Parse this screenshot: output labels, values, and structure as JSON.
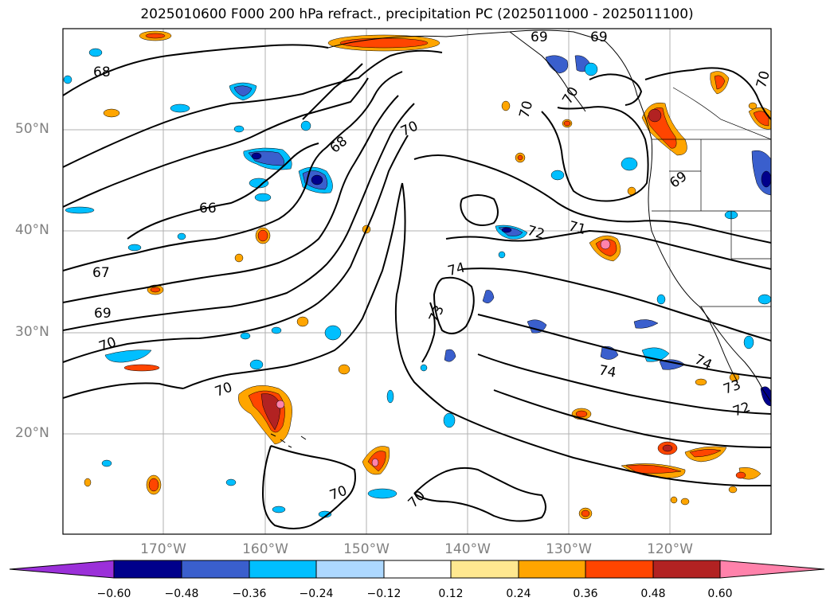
{
  "title": "2025010600 F000 200 hPa refract., precipitation PC (2025011000 - 2025011100)",
  "latitude_labels": [
    "50°N",
    "40°N",
    "30°N",
    "20°N"
  ],
  "longitude_labels": [
    "170°W",
    "160°W",
    "150°W",
    "140°W",
    "130°W",
    "120°W"
  ],
  "colorbar": {
    "tick_labels": [
      "−0.60",
      "−0.48",
      "−0.36",
      "−0.24",
      "−0.12",
      "0.12",
      "0.24",
      "0.36",
      "0.48",
      "0.60"
    ],
    "colors": [
      "#9b30d9",
      "#00008b",
      "#3a5fcd",
      "#00bfff",
      "#add8ff",
      "#ffffff",
      "#ffe890",
      "#ffa500",
      "#ff4500",
      "#b22222",
      "#ff82ab"
    ]
  },
  "contour_labels": [
    "68",
    "69",
    "69",
    "70",
    "70",
    "68",
    "70",
    "69",
    "70",
    "66",
    "72",
    "71",
    "67",
    "74",
    "69",
    "73",
    "70",
    "74",
    "74",
    "70",
    "73",
    "72",
    "70",
    "70"
  ],
  "colors": {
    "contour": "#000000",
    "grid": "#b0b0b0",
    "axis_label": "#808080"
  }
}
